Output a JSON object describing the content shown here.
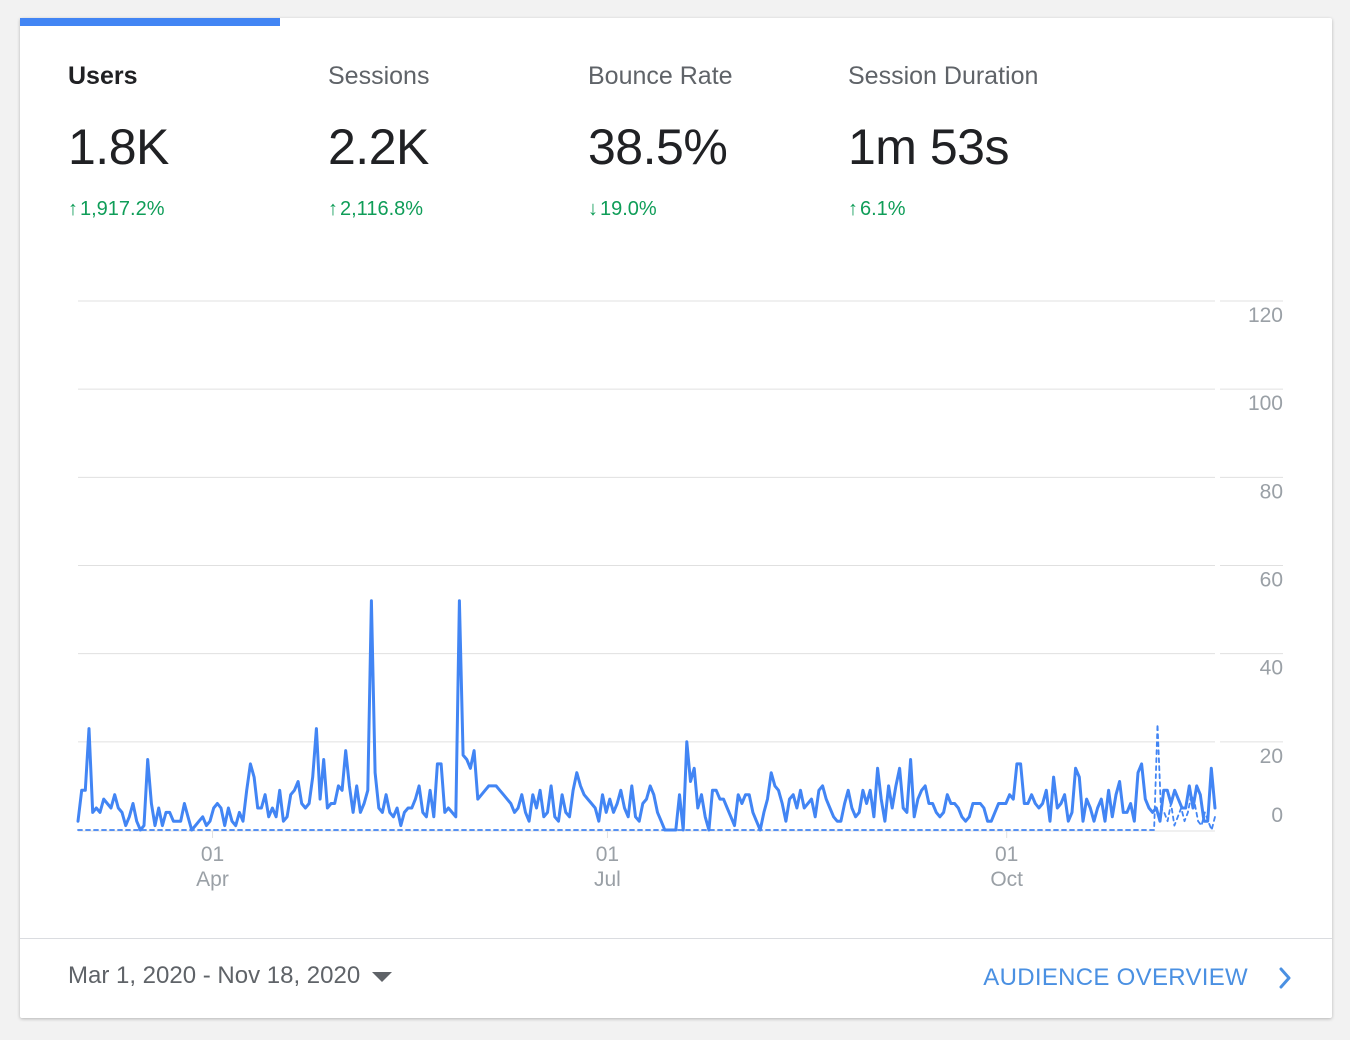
{
  "metrics": [
    {
      "label": "Users",
      "value": "1.8K",
      "change": "1,917.2%",
      "direction": "up",
      "active": true
    },
    {
      "label": "Sessions",
      "value": "2.2K",
      "change": "2,116.8%",
      "direction": "up",
      "active": false
    },
    {
      "label": "Bounce Rate",
      "value": "38.5%",
      "change": "19.0%",
      "direction": "down",
      "active": false
    },
    {
      "label": "Session Duration",
      "value": "1m 53s",
      "change": "6.1%",
      "direction": "up",
      "active": false
    }
  ],
  "footer": {
    "date_range": "Mar 1, 2020 - Nov 18, 2020",
    "audience_link": "AUDIENCE OVERVIEW"
  },
  "colors": {
    "accent": "#4285f4",
    "positive": "#0f9d58",
    "link": "#4a90e2"
  },
  "chart_data": {
    "type": "line",
    "series": [
      {
        "values": [
          2,
          9,
          9,
          23,
          4,
          5,
          4,
          7,
          6,
          5,
          8,
          5,
          4,
          1,
          3,
          6,
          2,
          0,
          1,
          16,
          6,
          1,
          5,
          1,
          4,
          4,
          2,
          2,
          2,
          6,
          3,
          0,
          1,
          2,
          3,
          1,
          2,
          5,
          6,
          5,
          1,
          5,
          2,
          1,
          4,
          2,
          9,
          15,
          12,
          5,
          5,
          8,
          3,
          5,
          3,
          9,
          2,
          3,
          8,
          9,
          11,
          6,
          5,
          6,
          12,
          23,
          7,
          16,
          5,
          6,
          6,
          10,
          9,
          18,
          10,
          4,
          10,
          4,
          6,
          9,
          52,
          13,
          5,
          4,
          8,
          4,
          3,
          5,
          1,
          4,
          5,
          5,
          7,
          10,
          4,
          3,
          9,
          3,
          15,
          15,
          4,
          5,
          4,
          3,
          52,
          17,
          16,
          14,
          18,
          7,
          8,
          9,
          10,
          10,
          10,
          9,
          8,
          7,
          6,
          4,
          5,
          8,
          4,
          2,
          8,
          5,
          9,
          3,
          4,
          10,
          3,
          2,
          8,
          4,
          3,
          9,
          13,
          10,
          8,
          7,
          6,
          5,
          2,
          8,
          4,
          7,
          4,
          6,
          9,
          5,
          3,
          10,
          3,
          2,
          6,
          7,
          10,
          8,
          4,
          2,
          0,
          0,
          0,
          0,
          8,
          0,
          20,
          11,
          14,
          5,
          8,
          3,
          0,
          9,
          9,
          7,
          7,
          5,
          3,
          1,
          8,
          6,
          8,
          8,
          4,
          2,
          0,
          4,
          7,
          13,
          10,
          9,
          6,
          2,
          7,
          8,
          5,
          9,
          5,
          6,
          7,
          3,
          9,
          10,
          7,
          5,
          3,
          2,
          2,
          6,
          9,
          5,
          3,
          4,
          9,
          6,
          9,
          3,
          14,
          7,
          2,
          10,
          5,
          10,
          14,
          5,
          4,
          16,
          3,
          7,
          9,
          10,
          6,
          6,
          4,
          3,
          4,
          8,
          6,
          6,
          5,
          3,
          2,
          3,
          6,
          6,
          6,
          5,
          2,
          2,
          4,
          6,
          6,
          6,
          8,
          7,
          15,
          15,
          6,
          6,
          8,
          6,
          5,
          6,
          9,
          2,
          12,
          5,
          6,
          8,
          2,
          4,
          14,
          12,
          2,
          7,
          5,
          2,
          5,
          7,
          2,
          9,
          3,
          8,
          11,
          4,
          4,
          6,
          2,
          13,
          15,
          7,
          5,
          4,
          5,
          2,
          9,
          9,
          6,
          9,
          7,
          5,
          5,
          10,
          5,
          10,
          8,
          2,
          2,
          14,
          5
        ]
      },
      {
        "values": [
          0,
          0,
          0,
          0,
          0,
          0,
          0,
          0,
          0,
          0,
          0,
          0,
          0,
          0,
          0,
          0,
          0,
          0,
          0,
          0,
          0,
          0,
          0,
          0,
          0,
          0,
          0,
          0,
          0,
          0,
          0,
          0,
          0,
          0,
          0,
          0,
          0,
          0,
          0,
          0,
          0,
          0,
          0,
          0,
          0,
          0,
          0,
          0,
          0,
          0,
          0,
          0,
          0,
          0,
          0,
          0,
          0,
          0,
          0,
          0,
          0,
          0,
          0,
          0,
          0,
          0,
          0,
          0,
          0,
          0,
          0,
          0,
          0,
          0,
          0,
          0,
          0,
          0,
          0,
          0,
          0,
          0,
          0,
          0,
          0,
          0,
          0,
          0,
          0,
          0,
          0,
          0,
          0,
          0,
          0,
          0,
          0,
          0,
          0,
          0,
          0,
          0,
          0,
          0,
          0,
          0,
          0,
          0,
          0,
          0,
          0,
          0,
          0,
          0,
          0,
          0,
          0,
          0,
          0,
          0,
          0,
          0,
          0,
          0,
          0,
          0,
          0,
          0,
          0,
          0,
          0,
          0,
          0,
          0,
          0,
          0,
          0,
          0,
          0,
          0,
          0,
          0,
          0,
          0,
          0,
          0,
          0,
          0,
          0,
          0,
          0,
          0,
          0,
          0,
          0,
          0,
          0,
          0,
          0,
          0,
          0,
          0,
          0,
          0,
          0,
          0,
          0,
          0,
          0,
          0,
          0,
          0,
          0,
          0,
          0,
          0,
          0,
          0,
          0,
          0,
          0,
          0,
          0,
          0,
          0,
          0,
          0,
          0,
          0,
          0,
          0,
          0,
          0,
          0,
          0,
          0,
          0,
          0,
          0,
          0,
          0,
          0,
          0,
          0,
          0,
          0,
          0,
          0,
          0,
          0,
          0,
          0,
          0,
          0,
          0,
          0,
          0,
          0,
          0,
          0,
          0,
          0,
          0,
          0,
          0,
          0,
          0,
          0,
          0,
          0,
          0,
          0,
          0,
          0,
          0,
          0,
          0,
          0,
          0,
          0,
          0,
          0,
          0,
          0,
          0,
          0,
          0,
          0,
          0,
          0,
          0,
          0,
          0,
          0,
          0,
          0,
          0,
          0,
          0,
          0,
          0,
          0,
          0,
          0,
          0,
          0,
          0,
          0,
          0,
          0,
          0,
          0,
          0,
          0,
          0,
          0,
          0,
          0,
          0,
          0,
          0,
          0,
          0,
          0,
          0,
          0,
          0,
          0,
          0,
          0,
          0,
          0,
          0,
          0,
          0,
          0,
          0,
          0,
          0,
          0,
          0,
          0,
          0,
          0,
          0,
          0,
          0,
          0,
          0,
          0,
          0,
          0,
          0,
          0,
          0,
          0,
          0,
          0,
          0,
          24,
          5,
          4,
          2,
          6,
          1,
          3,
          5,
          2,
          4,
          8,
          6,
          2,
          1,
          4,
          2,
          0,
          3
        ]
      }
    ],
    "x_start": "2020-03-01",
    "x_end": "2020-11-18",
    "xticks": [
      {
        "day": "01",
        "month": "Apr",
        "date": "2020-04-01"
      },
      {
        "day": "01",
        "month": "Jul",
        "date": "2020-07-01"
      },
      {
        "day": "01",
        "month": "Oct",
        "date": "2020-10-01"
      }
    ],
    "yticks": [
      0,
      20,
      40,
      60,
      80,
      100,
      120
    ],
    "ylim": [
      0,
      120
    ],
    "grid": true,
    "yaxis_side": "right",
    "title": "",
    "xlabel": "",
    "ylabel": ""
  }
}
